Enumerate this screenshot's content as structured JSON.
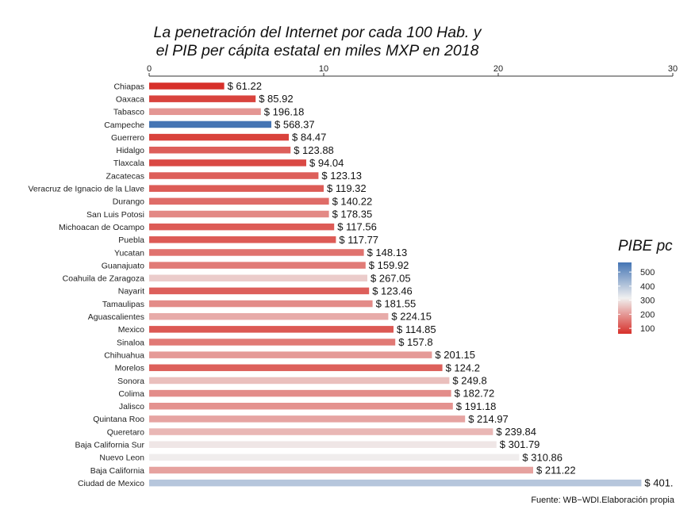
{
  "chart_data": {
    "type": "bar",
    "orientation": "horizontal",
    "title": [
      "La penetración del Internet por cada 100 Hab. y",
      "el PIB per cápita estatal en miles MXP en 2018"
    ],
    "xlim": [
      0,
      30
    ],
    "x_ticks": [
      "0",
      "10",
      "20",
      "30"
    ],
    "x_axis_position": "top",
    "grid": false,
    "categories": [
      "Chiapas",
      "Oaxaca",
      "Tabasco",
      "Campeche",
      "Guerrero",
      "Hidalgo",
      "Tlaxcala",
      "Zacatecas",
      "Veracruz de Ignacio de la Llave",
      "Durango",
      "San Luis Potosi",
      "Michoacan de Ocampo",
      "Puebla",
      "Yucatan",
      "Guanajuato",
      "Coahuila de Zaragoza",
      "Nayarit",
      "Tamaulipas",
      "Aguascalientes",
      "Mexico",
      "Sinaloa",
      "Chihuahua",
      "Morelos",
      "Sonora",
      "Colima",
      "Jalisco",
      "Quintana Roo",
      "Queretaro",
      "Baja California Sur",
      "Nuevo Leon",
      "Baja California",
      "Ciudad de Mexico"
    ],
    "values": [
      4.3,
      6.1,
      6.4,
      7.0,
      8.0,
      8.1,
      9.0,
      9.7,
      10.0,
      10.3,
      10.3,
      10.6,
      10.7,
      12.3,
      12.4,
      12.5,
      12.6,
      12.8,
      13.7,
      14.0,
      14.1,
      16.2,
      16.8,
      17.2,
      17.3,
      17.4,
      18.1,
      19.7,
      19.9,
      21.2,
      22.0,
      28.2
    ],
    "pibe": [
      61.22,
      85.92,
      196.18,
      568.37,
      84.47,
      123.88,
      94.04,
      123.13,
      119.32,
      140.22,
      178.35,
      117.56,
      117.77,
      148.13,
      159.92,
      267.05,
      123.46,
      181.55,
      224.15,
      114.85,
      157.8,
      201.15,
      124.2,
      249.8,
      182.72,
      191.18,
      214.97,
      239.84,
      301.79,
      310.86,
      211.22,
      401.0
    ],
    "data_labels": [
      "$ 61.22",
      "$ 85.92",
      "$ 196.18",
      "$ 568.37",
      "$ 84.47",
      "$ 123.88",
      "$ 94.04",
      "$ 123.13",
      "$ 119.32",
      "$ 140.22",
      "$ 178.35",
      "$ 117.56",
      "$ 117.77",
      "$ 148.13",
      "$ 159.92",
      "$ 267.05",
      "$ 123.46",
      "$ 181.55",
      "$ 224.15",
      "$ 114.85",
      "$ 157.8",
      "$ 201.15",
      "$ 124.2",
      "$ 249.8",
      "$ 182.72",
      "$ 191.18",
      "$ 214.97",
      "$ 239.84",
      "$ 301.79",
      "$ 310.86",
      "$ 211.22",
      "$ 401."
    ],
    "legend": {
      "title": "PIBE pc",
      "placement": "right",
      "ticks": [
        500,
        400,
        300,
        200,
        100
      ],
      "tick_labels": [
        "500",
        "400",
        "300",
        "200",
        "100"
      ],
      "range": [
        61.22,
        568.37
      ],
      "colors": {
        "low": "#d7302a",
        "mid": "#f0f0f0",
        "high": "#4575b4"
      }
    },
    "source": "Fuente: WB−WDI.Elaboración propia"
  }
}
